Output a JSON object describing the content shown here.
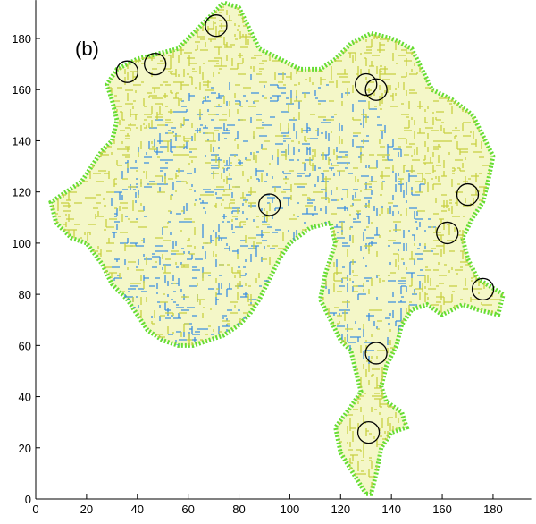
{
  "chart_data": {
    "type": "scatter",
    "annotation": "(b)",
    "xlim": [
      0,
      195
    ],
    "ylim": [
      0,
      195
    ],
    "xticks": [
      0,
      20,
      40,
      60,
      80,
      100,
      120,
      140,
      160,
      180
    ],
    "yticks": [
      0,
      20,
      40,
      60,
      80,
      100,
      120,
      140,
      160,
      180
    ],
    "series": [
      {
        "color": "#000000",
        "x": [
          71,
          47,
          36,
          130,
          134,
          92,
          170,
          162,
          176,
          134,
          131
        ],
        "values": [
          185,
          170,
          167,
          162,
          160,
          115,
          119,
          104,
          82,
          57,
          26
        ]
      }
    ]
  }
}
